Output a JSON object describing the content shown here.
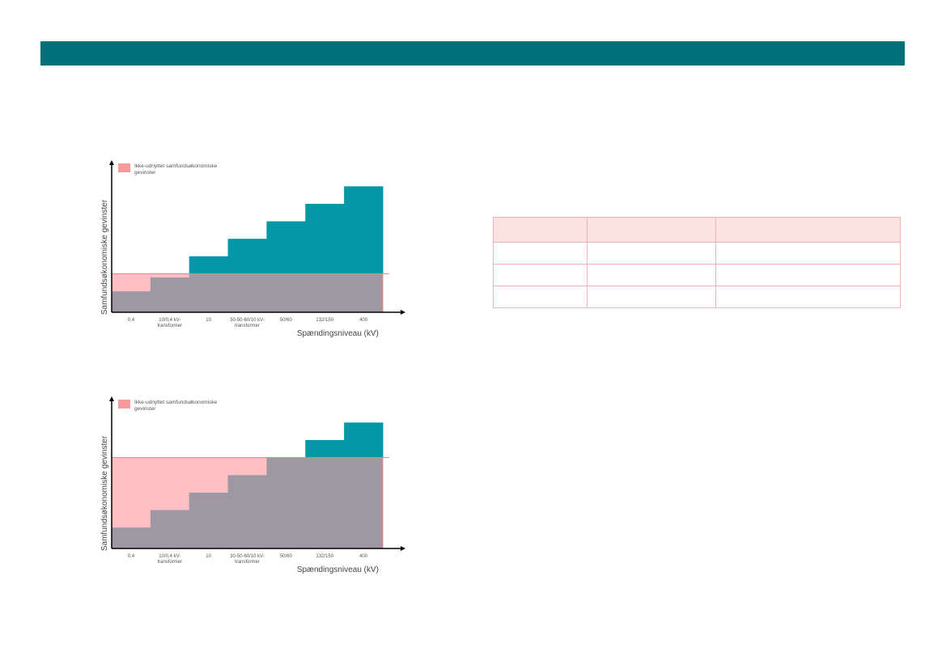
{
  "colors": {
    "topbar": "#00717a",
    "teal": "#0398a8",
    "gray": "#9e98a3",
    "pink": "#ffbfc4",
    "line": "#f08080",
    "legend_swatch": "#f59b9b",
    "table_border": "#f6b3b3",
    "table_header": "#fde2e2"
  },
  "charts": [
    {
      "legend": [
        "Ikke-udnyttet samfundsøkonomiske",
        "gevinster"
      ],
      "ylabel": "Samfundsøkonomiske gevinster",
      "xlabel": "Spændingsniveau (kV)",
      "ticks": [
        [
          "0,4"
        ],
        [
          "10/0,4 kV-",
          "transformer"
        ],
        [
          "10"
        ],
        [
          "30-50-60/10 kV-",
          "transformer"
        ],
        [
          "50/60"
        ],
        [
          "132/150"
        ],
        [
          "400"
        ]
      ]
    },
    {
      "legend": [
        "Ikke-udnyttet samfundsøkonomiske",
        "gevinster"
      ],
      "ylabel": "Samfundsøkonomiske gevinster",
      "xlabel": "Spændingsniveau (kV)",
      "ticks": [
        [
          "0,4"
        ],
        [
          "10/0,4 kV-",
          "transformer"
        ],
        [
          "10"
        ],
        [
          "30-50-60/10 kV-",
          "transformer"
        ],
        [
          "50/60"
        ],
        [
          "132/150"
        ],
        [
          "400"
        ]
      ]
    }
  ],
  "chart_data": [
    {
      "type": "area",
      "categories": [
        "0,4",
        "10/0,4 kV-transformer",
        "10",
        "30-50-60/10 kV-transformer",
        "50/60",
        "132/150",
        "400"
      ],
      "threshold": 2.2,
      "series": [
        {
          "name": "Ikke-udnyttet samfundsøkonomiske gevinster",
          "values": [
            1.2,
            2.0,
            3.2,
            4.2,
            5.2,
            6.2,
            7.2
          ]
        }
      ],
      "ylabel": "Samfundsøkonomiske gevinster",
      "xlabel": "Spændingsniveau (kV)"
    },
    {
      "type": "area",
      "categories": [
        "0,4",
        "10/0,4 kV-transformer",
        "10",
        "30-50-60/10 kV-transformer",
        "50/60",
        "132/150",
        "400"
      ],
      "threshold": 5.2,
      "series": [
        {
          "name": "Ikke-udnyttet samfundsøkonomiske gevinster",
          "values": [
            1.2,
            2.2,
            3.2,
            4.2,
            5.2,
            6.2,
            7.2
          ]
        }
      ],
      "ylabel": "Samfundsøkonomiske gevinster",
      "xlabel": "Spændingsniveau (kV)"
    }
  ],
  "table": {
    "headers": [
      "",
      "",
      ""
    ],
    "rows": [
      [
        "",
        "",
        ""
      ],
      [
        "",
        "",
        ""
      ],
      [
        "",
        "",
        ""
      ]
    ]
  }
}
